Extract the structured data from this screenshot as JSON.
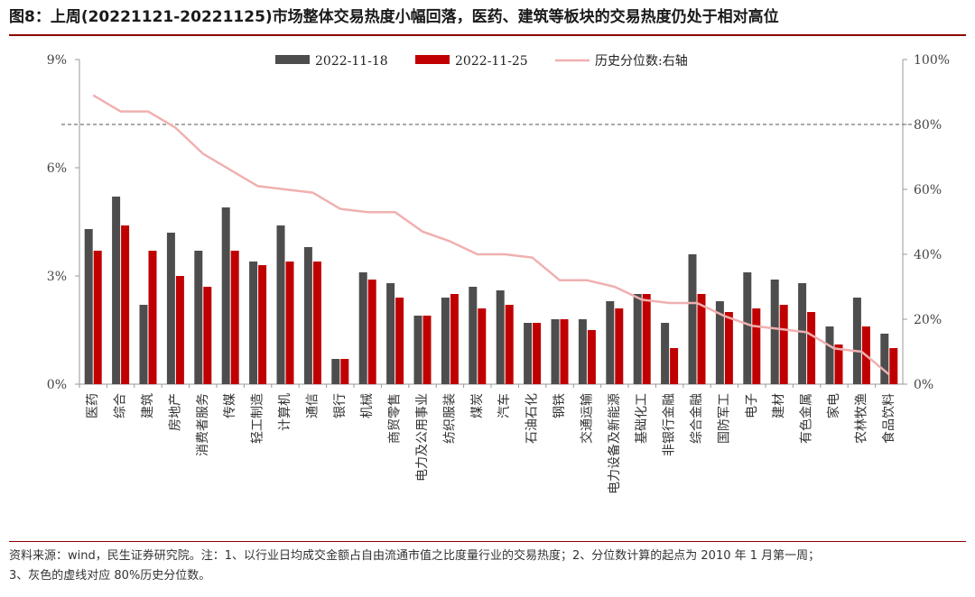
{
  "title": "图8：上周(20221121-20221125)市场整体交易热度小幅回落，医药、建筑等板块的交易热度仍处于相对高位",
  "chart_data": {
    "type": "bar",
    "categories": [
      "医药",
      "综合",
      "建筑",
      "房地产",
      "消费者服务",
      "传媒",
      "轻工制造",
      "计算机",
      "通信",
      "银行",
      "机械",
      "商贸零售",
      "电力及公用事业",
      "纺织服装",
      "煤炭",
      "汽车",
      "石油石化",
      "钢铁",
      "交通运输",
      "电力设备及新能源",
      "基础化工",
      "非银行金融",
      "综合金融",
      "国防军工",
      "电子",
      "建材",
      "有色金属",
      "家电",
      "农林牧渔",
      "食品饮料"
    ],
    "series": [
      {
        "name": "2022-11-18",
        "color": "#4d4d4d",
        "axis": "left",
        "values": [
          4.3,
          5.2,
          2.2,
          4.2,
          3.7,
          4.9,
          3.4,
          4.4,
          3.8,
          0.7,
          3.1,
          2.8,
          1.9,
          2.4,
          2.7,
          2.6,
          1.7,
          1.8,
          1.8,
          2.3,
          2.5,
          1.7,
          3.6,
          2.3,
          3.1,
          2.9,
          2.8,
          1.6,
          2.4,
          1.4
        ]
      },
      {
        "name": "2022-11-25",
        "color": "#c00000",
        "axis": "left",
        "values": [
          3.7,
          4.4,
          3.7,
          3.0,
          2.7,
          3.7,
          3.3,
          3.4,
          3.4,
          0.7,
          2.9,
          2.4,
          1.9,
          2.5,
          2.1,
          2.2,
          1.7,
          1.8,
          1.5,
          2.1,
          2.5,
          1.0,
          2.5,
          2.0,
          2.1,
          2.2,
          2.0,
          1.1,
          1.6,
          1.0
        ]
      },
      {
        "name": "历史分位数:右轴",
        "color": "#f0b0b0",
        "axis": "right",
        "values": [
          89,
          84,
          84,
          79,
          71,
          66,
          61,
          60,
          59,
          54,
          53,
          53,
          47,
          44,
          40,
          40,
          39,
          32,
          32,
          30,
          26,
          25,
          25,
          21,
          18,
          17,
          16,
          11,
          10,
          3
        ]
      }
    ],
    "y_left": {
      "min": 0,
      "max": 9,
      "ticks": [
        0,
        3,
        6,
        9
      ],
      "tick_labels": [
        "0%",
        "3%",
        "6%",
        "9%"
      ]
    },
    "y_right": {
      "min": 0,
      "max": 100,
      "ticks": [
        0,
        20,
        40,
        60,
        80,
        100
      ],
      "tick_labels": [
        "0%",
        "20%",
        "40%",
        "60%",
        "80%",
        "100%"
      ]
    },
    "reference_line": {
      "axis": "right",
      "value": 80,
      "style": "dashed",
      "color": "#777777"
    },
    "legend_placement": "top-center",
    "grid": false
  },
  "footer": {
    "line1": "资料来源：wind，民生证券研究院。注：1、以行业日均成交金额占自由流通市值之比度量行业的交易热度；2、分位数计算的起点为 2010 年 1 月第一周；",
    "line2": "3、灰色的虚线对应 80%历史分位数。"
  }
}
